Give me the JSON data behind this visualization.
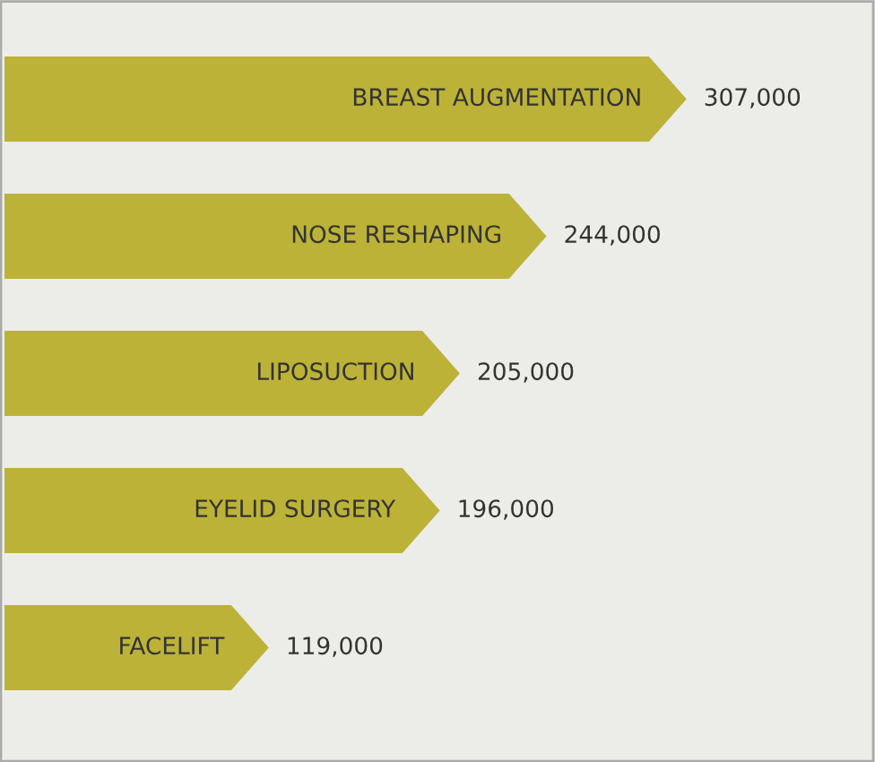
{
  "chart_data": {
    "type": "bar",
    "orientation": "horizontal",
    "categories": [
      "BREAST AUGMENTATION",
      "NOSE RESHAPING",
      "LIPOSUCTION",
      "EYELID SURGERY",
      "FACELIFT"
    ],
    "values": [
      307000,
      244000,
      205000,
      196000,
      119000
    ],
    "color": "#bcb237",
    "value_labels": [
      "307,000",
      "244,000",
      "205,000",
      "196,000",
      "119,000"
    ]
  }
}
